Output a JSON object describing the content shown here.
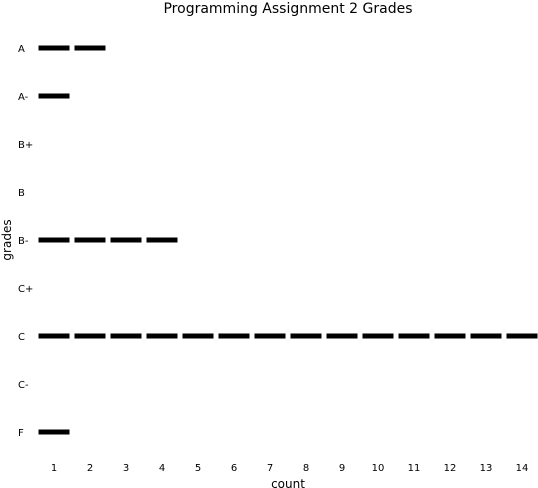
{
  "chart_data": {
    "type": "bar",
    "title": "Programming Assignment 2 Grades",
    "xlabel": "count",
    "ylabel": "grades",
    "categories": [
      "A",
      "A-",
      "B+",
      "B",
      "B-",
      "C+",
      "C",
      "C-",
      "F"
    ],
    "values": [
      2,
      1,
      0,
      0,
      4,
      0,
      14,
      0,
      1
    ],
    "xticks": [
      1,
      2,
      3,
      4,
      5,
      6,
      7,
      8,
      9,
      10,
      11,
      12,
      13,
      14
    ],
    "xlim": [
      0.5,
      14.5
    ],
    "bar_style": "segmented-horizontal",
    "bar_color": "#000000",
    "grid": false,
    "legend": "none"
  }
}
